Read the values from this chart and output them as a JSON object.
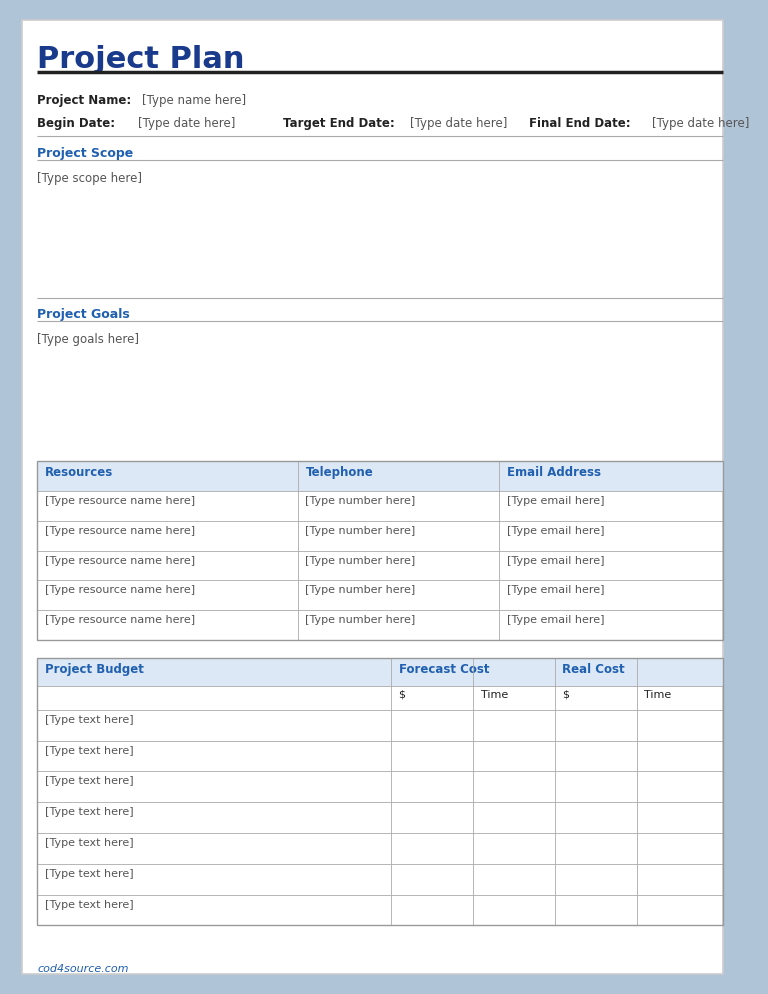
{
  "title": "Project Plan",
  "title_color": "#1a3a8c",
  "title_fontsize": 22,
  "bg_color": "#ffffff",
  "page_bg": "#b0c4d8",
  "gray_line_color": "#aaaaaa",
  "dark_line_color": "#222222",
  "label_color": "#222222",
  "placeholder_color": "#555555",
  "section_header_color": "#2060b0",
  "table_header_color": "#2060b0",
  "project_name_label": "Project Name:",
  "project_name_value": "[Type name here]",
  "begin_date_label": "Begin Date:",
  "begin_date_value": "[Type date here]",
  "target_end_label": "Target End Date:",
  "target_end_value": "[Type date here]",
  "final_end_label": "Final End Date:",
  "final_end_value": "[Type date here]",
  "scope_header": "Project Scope",
  "scope_placeholder": "[Type scope here]",
  "goals_header": "Project Goals",
  "goals_placeholder": "[Type goals here]",
  "resources_header": "Resources",
  "telephone_header": "Telephone",
  "email_header": "Email Address",
  "resource_placeholder": "[Type resource name here]",
  "number_placeholder": "[Type number here]",
  "email_placeholder": "[Type email here]",
  "num_resource_rows": 5,
  "budget_header": "Project Budget",
  "forecast_header": "Forecast Cost",
  "realcost_header": "Real Cost",
  "dollar_label": "$",
  "time_label": "Time",
  "budget_placeholder": "[Type text here]",
  "num_budget_rows": 7,
  "footer_text": "cod4source.com",
  "footer_color": "#2060b0",
  "table_header_bg": "#dce8f5",
  "L": 0.05,
  "R": 0.97,
  "res_col1": 0.4,
  "res_col2": 0.67,
  "bud_col1": 0.525,
  "bud_col2": 0.635,
  "bud_col3": 0.745,
  "bud_col4": 0.855
}
